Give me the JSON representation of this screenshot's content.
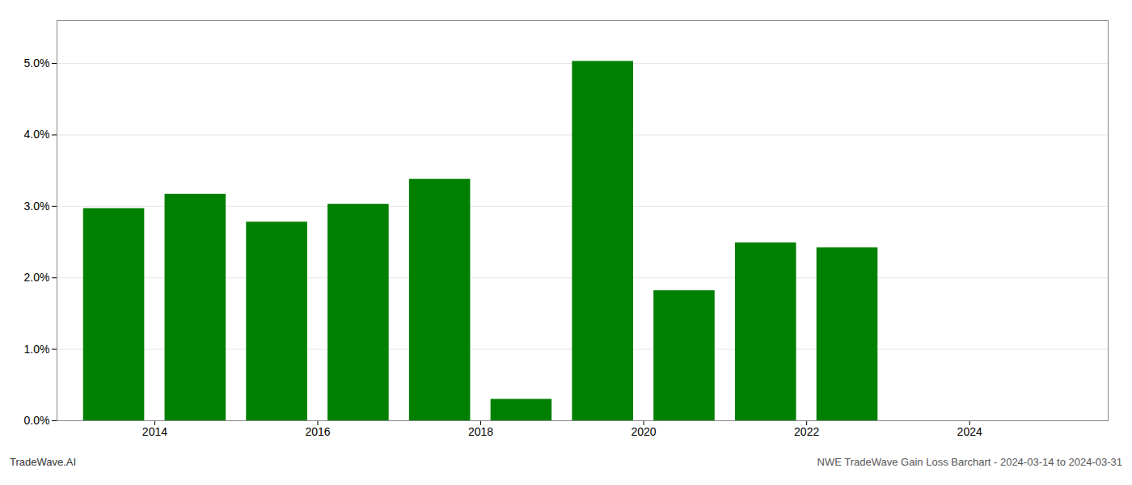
{
  "chart_data": {
    "type": "bar",
    "x": [
      2013,
      2014,
      2015,
      2016,
      2017,
      2018,
      2019,
      2020,
      2021,
      2022
    ],
    "values": [
      0.0297,
      0.0317,
      0.0278,
      0.0303,
      0.0338,
      0.003,
      0.0503,
      0.0182,
      0.0249,
      0.0242
    ],
    "color": "#008000",
    "xlim": [
      2012.3,
      2025.2
    ],
    "xticks": [
      {
        "value": 2013.5,
        "label": "2014"
      },
      {
        "value": 2015.5,
        "label": "2016"
      },
      {
        "value": 2017.5,
        "label": "2018"
      },
      {
        "value": 2019.5,
        "label": "2020"
      },
      {
        "value": 2021.5,
        "label": "2022"
      },
      {
        "value": 2023.5,
        "label": "2024"
      }
    ],
    "ylim": [
      0,
      0.056
    ],
    "yticks": [
      {
        "value": 0.0,
        "label": "0.0%"
      },
      {
        "value": 0.01,
        "label": "1.0%"
      },
      {
        "value": 0.02,
        "label": "2.0%"
      },
      {
        "value": 0.03,
        "label": "3.0%"
      },
      {
        "value": 0.04,
        "label": "4.0%"
      },
      {
        "value": 0.05,
        "label": "5.0%"
      }
    ],
    "grid": true,
    "annotations": [
      "TradeWave.AI",
      "NWE TradeWave Gain Loss Barchart - 2024-03-14 to 2024-03-31"
    ]
  }
}
